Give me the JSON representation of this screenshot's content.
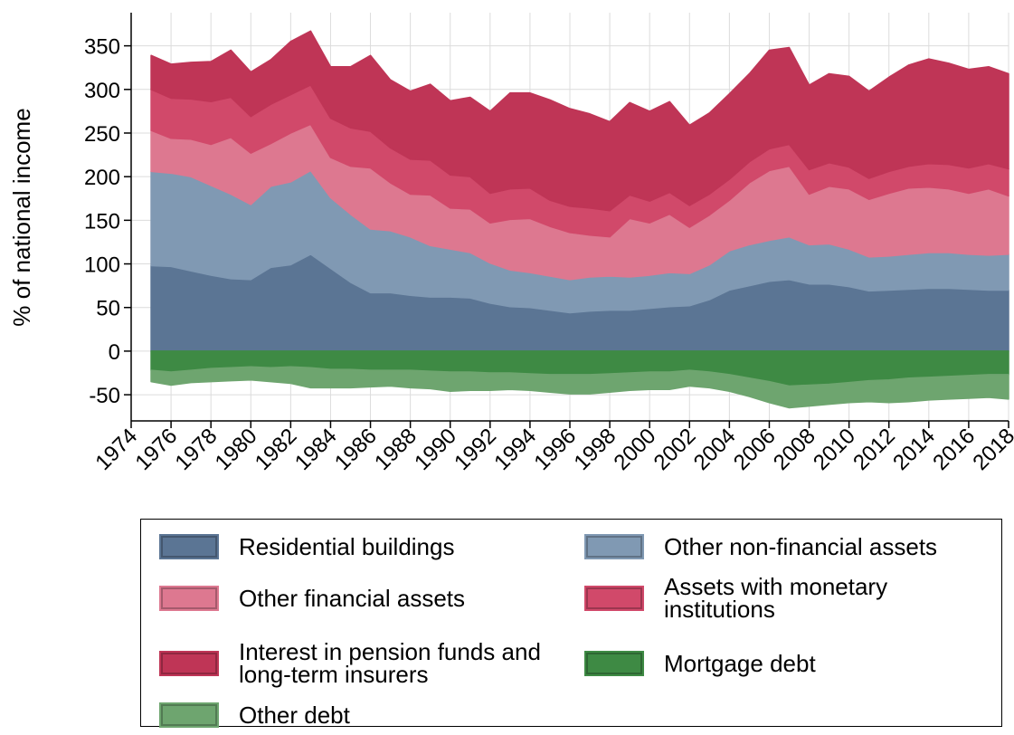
{
  "chart_data": {
    "type": "stacked-area",
    "y_label": "% of national income",
    "x": [
      1975,
      1976,
      1977,
      1978,
      1979,
      1980,
      1981,
      1982,
      1983,
      1984,
      1985,
      1986,
      1987,
      1988,
      1989,
      1990,
      1991,
      1992,
      1993,
      1994,
      1995,
      1996,
      1997,
      1998,
      1999,
      2000,
      2001,
      2002,
      2003,
      2004,
      2005,
      2006,
      2007,
      2008,
      2009,
      2010,
      2011,
      2012,
      2013,
      2014,
      2015,
      2016,
      2017,
      2018
    ],
    "xlim": [
      1974,
      2018
    ],
    "xticks": [
      1974,
      1976,
      1978,
      1980,
      1982,
      1984,
      1986,
      1988,
      1990,
      1992,
      1994,
      1996,
      1998,
      2000,
      2002,
      2004,
      2006,
      2008,
      2010,
      2012,
      2014,
      2016,
      2018
    ],
    "ylim": [
      -80,
      388
    ],
    "yticks": [
      -50,
      0,
      50,
      100,
      150,
      200,
      250,
      300,
      350
    ],
    "grid": true,
    "series": [
      {
        "name": "Residential buildings",
        "color": "#5b7594",
        "values": [
          98,
          97,
          92,
          87,
          83,
          82,
          96,
          99,
          111,
          95,
          79,
          67,
          67,
          64,
          62,
          62,
          61,
          55,
          51,
          50,
          47,
          44,
          46,
          47,
          47,
          49,
          51,
          52,
          59,
          70,
          75,
          80,
          82,
          77,
          77,
          74,
          69,
          70,
          71,
          72,
          72,
          71,
          70,
          70
        ]
      },
      {
        "name": "Other non-financial assets",
        "color": "#8099b3",
        "values": [
          108,
          107,
          108,
          103,
          97,
          86,
          93,
          95,
          96,
          81,
          78,
          73,
          71,
          67,
          59,
          55,
          52,
          46,
          42,
          40,
          39,
          38,
          39,
          39,
          38,
          38,
          39,
          37,
          40,
          45,
          47,
          47,
          49,
          45,
          46,
          43,
          39,
          39,
          40,
          41,
          41,
          40,
          40,
          41
        ]
      },
      {
        "name": "Other financial assets",
        "color": "#dd7890",
        "values": [
          47,
          40,
          43,
          47,
          65,
          59,
          49,
          56,
          53,
          46,
          55,
          70,
          55,
          49,
          58,
          47,
          50,
          46,
          58,
          62,
          57,
          54,
          48,
          45,
          67,
          60,
          67,
          53,
          57,
          58,
          71,
          80,
          81,
          58,
          66,
          69,
          66,
          72,
          76,
          75,
          73,
          70,
          76,
          67
        ]
      },
      {
        "name": "Assets with monetary institutions",
        "color": "#d1496a",
        "values": [
          47,
          46,
          46,
          49,
          46,
          42,
          45,
          44,
          45,
          45,
          44,
          42,
          40,
          40,
          40,
          38,
          37,
          34,
          35,
          35,
          30,
          30,
          31,
          30,
          27,
          25,
          25,
          25,
          24,
          24,
          24,
          25,
          25,
          28,
          27,
          25,
          24,
          25,
          25,
          27,
          28,
          29,
          29,
          31
        ]
      },
      {
        "name": "Interest in pension funds and long-term insurers",
        "color": "#bf3556",
        "values": [
          39,
          39,
          42,
          46,
          54,
          51,
          51,
          61,
          62,
          59,
          70,
          87,
          78,
          78,
          87,
          85,
          91,
          94,
          110,
          109,
          115,
          112,
          108,
          102,
          106,
          103,
          104,
          92,
          93,
          98,
          101,
          113,
          111,
          97,
          102,
          104,
          100,
          108,
          116,
          120,
          116,
          113,
          111,
          109
        ]
      },
      {
        "name": "Mortgage debt",
        "color": "#3e8a44",
        "values": [
          -22,
          -24,
          -22,
          -20,
          -19,
          -18,
          -19,
          -18,
          -19,
          -21,
          -21,
          -22,
          -22,
          -22,
          -23,
          -24,
          -24,
          -25,
          -25,
          -26,
          -27,
          -27,
          -27,
          -26,
          -25,
          -24,
          -24,
          -22,
          -24,
          -27,
          -31,
          -35,
          -40,
          -39,
          -38,
          -36,
          -34,
          -33,
          -31,
          -30,
          -29,
          -28,
          -27,
          -27
        ]
      },
      {
        "name": "Other debt",
        "color": "#6ea56f",
        "values": [
          -13,
          -15,
          -14,
          -15,
          -15,
          -15,
          -16,
          -19,
          -23,
          -21,
          -21,
          -19,
          -18,
          -20,
          -20,
          -22,
          -21,
          -20,
          -19,
          -19,
          -20,
          -22,
          -22,
          -21,
          -20,
          -20,
          -20,
          -18,
          -18,
          -19,
          -21,
          -24,
          -25,
          -24,
          -23,
          -23,
          -24,
          -26,
          -27,
          -26,
          -26,
          -26,
          -26,
          -28
        ]
      }
    ]
  }
}
